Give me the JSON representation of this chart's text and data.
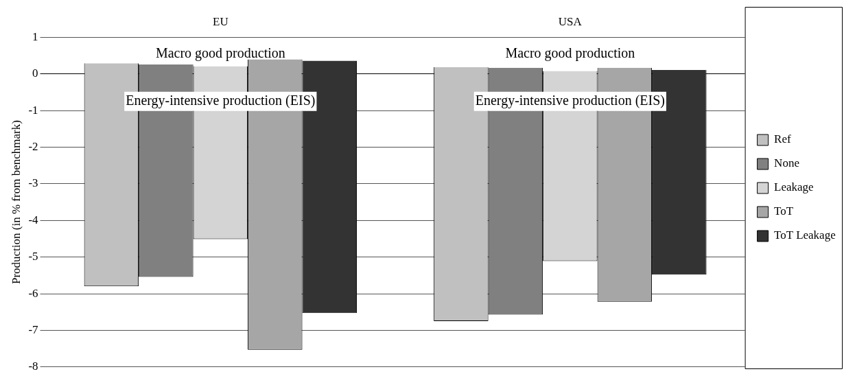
{
  "chart_data": {
    "type": "bar",
    "categories": [
      "EU",
      "USA"
    ],
    "ylabel": "Production (in % from benchmark)",
    "series": [
      {
        "name": "Ref",
        "color": "#c0c0c0",
        "base": [
          -5.8,
          -6.75
        ],
        "values": [
          6.09,
          6.94
        ]
      },
      {
        "name": "None",
        "color": "#808080",
        "base": [
          -5.54,
          -6.57
        ],
        "values": [
          5.8,
          6.74
        ]
      },
      {
        "name": "Leakage",
        "color": "#d4d4d4",
        "base": [
          -4.51,
          -5.11
        ],
        "values": [
          4.72,
          5.19
        ]
      },
      {
        "name": "ToT",
        "color": "#a6a6a6",
        "base": [
          -7.53,
          -6.22
        ],
        "values": [
          7.93,
          6.39
        ]
      },
      {
        "name": "ToT Leakage",
        "color": "#333333",
        "base": [
          -6.53,
          -5.48
        ],
        "values": [
          6.89,
          5.59
        ]
      }
    ],
    "ylim": [
      -8,
      1
    ],
    "yticks": [
      -8,
      -7,
      -6,
      -5,
      -4,
      -3,
      -2,
      -1,
      0,
      1
    ],
    "grid": "y",
    "legend": "right",
    "annotations": [
      "Macro good production",
      "Macro good production",
      "Energy-intensive production (EIS)",
      "Energy-intensive production (EIS)"
    ]
  }
}
